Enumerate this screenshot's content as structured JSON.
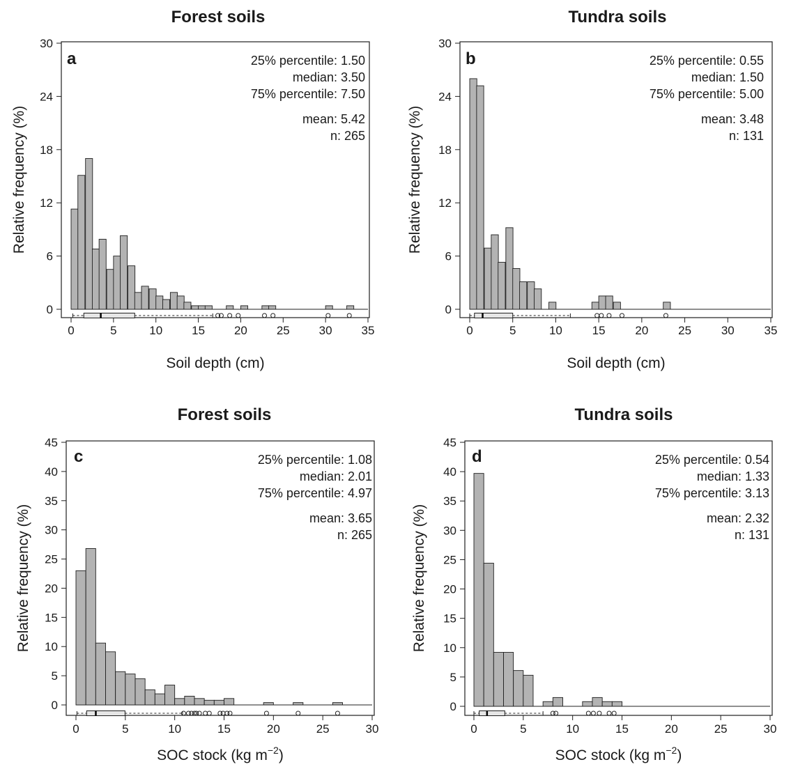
{
  "chart_data": [
    {
      "type": "bar",
      "panel_label": "a",
      "title": "Forest soils",
      "xlabel": "Soil depth (cm)",
      "ylabel": "Relative frequency (%)",
      "xlim": [
        0,
        35
      ],
      "ylim": [
        0,
        30
      ],
      "xticks": [
        "0",
        "5",
        "10",
        "15",
        "20",
        "25",
        "30",
        "35"
      ],
      "yticks": [
        "0",
        "6",
        "12",
        "18",
        "24",
        "30"
      ],
      "bin_width": 0.83,
      "bins": [
        {
          "x0": 0.0,
          "value": 11.3
        },
        {
          "x0": 0.8,
          "value": 15.1
        },
        {
          "x0": 1.7,
          "value": 17.0
        },
        {
          "x0": 2.5,
          "value": 6.8
        },
        {
          "x0": 3.3,
          "value": 7.9
        },
        {
          "x0": 4.2,
          "value": 4.5
        },
        {
          "x0": 5.0,
          "value": 6.0
        },
        {
          "x0": 5.8,
          "value": 8.3
        },
        {
          "x0": 6.7,
          "value": 4.9
        },
        {
          "x0": 7.5,
          "value": 1.9
        },
        {
          "x0": 8.3,
          "value": 2.6
        },
        {
          "x0": 9.2,
          "value": 2.3
        },
        {
          "x0": 10.0,
          "value": 1.5
        },
        {
          "x0": 10.8,
          "value": 1.1
        },
        {
          "x0": 11.7,
          "value": 1.9
        },
        {
          "x0": 12.5,
          "value": 1.5
        },
        {
          "x0": 13.3,
          "value": 0.8
        },
        {
          "x0": 14.2,
          "value": 0.4
        },
        {
          "x0": 15.0,
          "value": 0.4
        },
        {
          "x0": 15.8,
          "value": 0.4
        },
        {
          "x0": 18.3,
          "value": 0.4
        },
        {
          "x0": 20.0,
          "value": 0.4
        },
        {
          "x0": 22.5,
          "value": 0.4
        },
        {
          "x0": 23.3,
          "value": 0.4
        },
        {
          "x0": 30.0,
          "value": 0.4
        },
        {
          "x0": 32.5,
          "value": 0.4
        }
      ],
      "boxplot": {
        "whisker_low": 0.2,
        "q1": 1.5,
        "median": 3.5,
        "q3": 7.5,
        "whisker_high": 16.7,
        "outliers": [
          17.3,
          17.7,
          18.7,
          19.7,
          22.8,
          23.8,
          30.3,
          32.8
        ]
      },
      "stats": {
        "p25": "25% percentile: 1.50",
        "median": "median: 3.50",
        "p75": "75% percentile: 7.50",
        "mean": "mean: 5.42",
        "n": "n: 265"
      },
      "grid": false
    },
    {
      "type": "bar",
      "panel_label": "b",
      "title": "Tundra soils",
      "xlabel": "Soil depth (cm)",
      "ylabel": "Relative frequency (%)",
      "xlim": [
        0,
        35
      ],
      "ylim": [
        0,
        30
      ],
      "xticks": [
        "0",
        "5",
        "10",
        "15",
        "20",
        "25",
        "30",
        "35"
      ],
      "yticks": [
        "0",
        "6",
        "12",
        "18",
        "24",
        "30"
      ],
      "bin_width": 0.83,
      "bins": [
        {
          "x0": 0.0,
          "value": 26.0
        },
        {
          "x0": 0.8,
          "value": 25.2
        },
        {
          "x0": 1.7,
          "value": 6.9
        },
        {
          "x0": 2.5,
          "value": 8.4
        },
        {
          "x0": 3.3,
          "value": 5.3
        },
        {
          "x0": 4.2,
          "value": 9.2
        },
        {
          "x0": 5.0,
          "value": 4.6
        },
        {
          "x0": 5.8,
          "value": 3.1
        },
        {
          "x0": 6.7,
          "value": 3.1
        },
        {
          "x0": 7.5,
          "value": 2.3
        },
        {
          "x0": 9.2,
          "value": 0.8
        },
        {
          "x0": 14.2,
          "value": 0.8
        },
        {
          "x0": 15.0,
          "value": 1.5
        },
        {
          "x0": 15.8,
          "value": 1.5
        },
        {
          "x0": 16.7,
          "value": 0.8
        },
        {
          "x0": 22.5,
          "value": 0.8
        }
      ],
      "boxplot": {
        "whisker_low": 0.0,
        "q1": 0.55,
        "median": 1.5,
        "q3": 5.0,
        "whisker_high": 11.7,
        "outliers": [
          14.8,
          15.3,
          16.2,
          17.7,
          22.8
        ]
      },
      "stats": {
        "p25": "25% percentile: 0.55",
        "median": "median: 1.50",
        "p75": "75% percentile: 5.00",
        "mean": "mean: 3.48",
        "n": "n: 131"
      },
      "grid": false
    },
    {
      "type": "bar",
      "panel_label": "c",
      "title": "Forest soils",
      "xlabel": "SOC stock (kg m",
      "xlabel_sup": "−2",
      "xlabel_end": ")",
      "ylabel": "Relative frequency (%)",
      "xlim": [
        0,
        30
      ],
      "ylim": [
        0,
        45
      ],
      "xticks": [
        "0",
        "5",
        "10",
        "15",
        "20",
        "25",
        "30"
      ],
      "yticks": [
        "0",
        "5",
        "10",
        "15",
        "20",
        "25",
        "30",
        "35",
        "40",
        "45"
      ],
      "bin_width": 1.0,
      "bins": [
        {
          "x0": 0,
          "value": 23.0
        },
        {
          "x0": 1,
          "value": 26.8
        },
        {
          "x0": 2,
          "value": 10.6
        },
        {
          "x0": 3,
          "value": 9.1
        },
        {
          "x0": 4,
          "value": 5.7
        },
        {
          "x0": 5,
          "value": 5.3
        },
        {
          "x0": 6,
          "value": 4.5
        },
        {
          "x0": 7,
          "value": 2.6
        },
        {
          "x0": 8,
          "value": 1.9
        },
        {
          "x0": 9,
          "value": 3.4
        },
        {
          "x0": 10,
          "value": 1.1
        },
        {
          "x0": 11,
          "value": 1.5
        },
        {
          "x0": 12,
          "value": 1.1
        },
        {
          "x0": 13,
          "value": 0.8
        },
        {
          "x0": 14,
          "value": 0.8
        },
        {
          "x0": 15,
          "value": 1.1
        },
        {
          "x0": 19,
          "value": 0.4
        },
        {
          "x0": 22,
          "value": 0.4
        },
        {
          "x0": 26,
          "value": 0.4
        }
      ],
      "boxplot": {
        "whisker_low": 0.1,
        "q1": 1.08,
        "median": 2.01,
        "q3": 4.97,
        "whisker_high": 10.8,
        "outliers": [
          10.9,
          11.4,
          11.7,
          12.0,
          12.2,
          12.5,
          13.1,
          13.5,
          14.6,
          14.9,
          15.3,
          15.6,
          19.3,
          22.5,
          26.5
        ]
      },
      "stats": {
        "p25": "25% percentile: 1.08",
        "median": "median: 2.01",
        "p75": "75% percentile: 4.97",
        "mean": "mean: 3.65",
        "n": "n: 265"
      },
      "grid": false
    },
    {
      "type": "bar",
      "panel_label": "d",
      "title": "Tundra soils",
      "xlabel": "SOC stock (kg m",
      "xlabel_sup": "−2",
      "xlabel_end": ")",
      "ylabel": "Relative frequency (%)",
      "xlim": [
        0,
        30
      ],
      "ylim": [
        0,
        45
      ],
      "xticks": [
        "0",
        "5",
        "10",
        "15",
        "20",
        "25",
        "30"
      ],
      "yticks": [
        "0",
        "5",
        "10",
        "15",
        "20",
        "25",
        "30",
        "35",
        "40",
        "45"
      ],
      "bin_width": 1.0,
      "bins": [
        {
          "x0": 0,
          "value": 39.7
        },
        {
          "x0": 1,
          "value": 24.4
        },
        {
          "x0": 2,
          "value": 9.2
        },
        {
          "x0": 3,
          "value": 9.2
        },
        {
          "x0": 4,
          "value": 6.1
        },
        {
          "x0": 5,
          "value": 5.3
        },
        {
          "x0": 7,
          "value": 0.8
        },
        {
          "x0": 8,
          "value": 1.5
        },
        {
          "x0": 11,
          "value": 0.8
        },
        {
          "x0": 12,
          "value": 1.5
        },
        {
          "x0": 13,
          "value": 0.8
        },
        {
          "x0": 14,
          "value": 0.8
        }
      ],
      "boxplot": {
        "whisker_low": 0.0,
        "q1": 0.54,
        "median": 1.33,
        "q3": 3.13,
        "whisker_high": 7.0,
        "outliers": [
          8.0,
          8.3,
          11.6,
          12.1,
          12.7,
          13.7,
          14.2
        ]
      },
      "stats": {
        "p25": "25% percentile: 0.54",
        "median": "median: 1.33",
        "p75": "75% percentile: 3.13",
        "mean": "mean: 2.32",
        "n": "n: 131"
      },
      "grid": false
    }
  ],
  "colors": {
    "bar_fill": "#b3b3b3",
    "bar_stroke": "#1f1f1f",
    "box_fill": "#e6e6e6",
    "axis": "#1f1f1f",
    "text": "#1a1a1a"
  }
}
